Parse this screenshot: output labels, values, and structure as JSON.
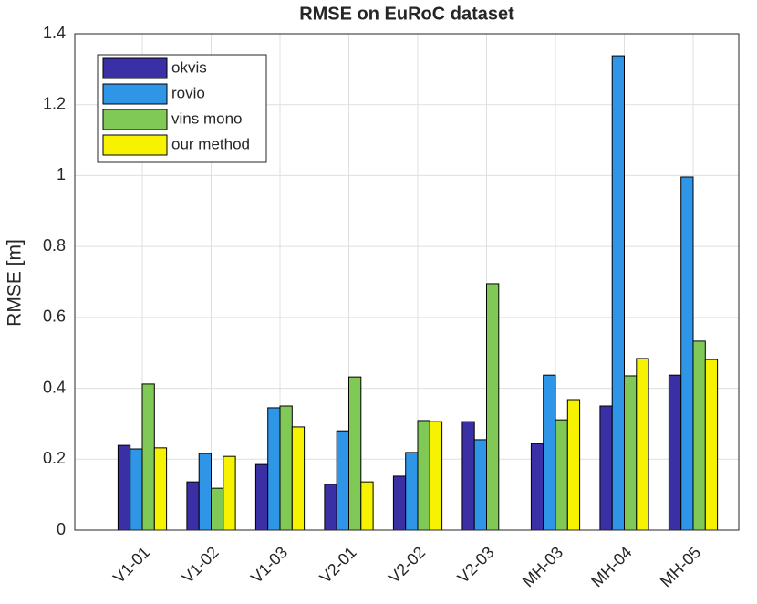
{
  "chart_data": {
    "type": "bar",
    "title": "RMSE on EuRoC dataset",
    "y_label": "RMSE [m]",
    "categories": [
      "V1-01",
      "V1-02",
      "V1-03",
      "V2-01",
      "V2-02",
      "V2-03",
      "MH-03",
      "MH-04",
      "MH-05"
    ],
    "series": [
      {
        "name": "okvis",
        "color": "#3b2fa6",
        "values": [
          0.239,
          0.136,
          0.185,
          0.129,
          0.152,
          0.306,
          0.244,
          0.35,
          0.437
        ]
      },
      {
        "name": "rovio",
        "color": "#2f95e6",
        "values": [
          0.229,
          0.216,
          0.345,
          0.28,
          0.219,
          0.255,
          0.437,
          1.338,
          0.996
        ]
      },
      {
        "name": "vins mono",
        "color": "#80c957",
        "values": [
          0.412,
          0.118,
          0.35,
          0.432,
          0.309,
          0.695,
          0.311,
          0.435,
          0.533
        ]
      },
      {
        "name": "our method",
        "color": "#f7f200",
        "values": [
          0.232,
          0.208,
          0.291,
          0.136,
          0.306,
          0,
          0.368,
          0.484,
          0.481
        ]
      }
    ],
    "ylim": [
      0,
      1.4
    ],
    "yticks": [
      0,
      0.2,
      0.4,
      0.6,
      0.8,
      1,
      1.2,
      1.4
    ],
    "grid": true,
    "legend": "upper-left"
  }
}
